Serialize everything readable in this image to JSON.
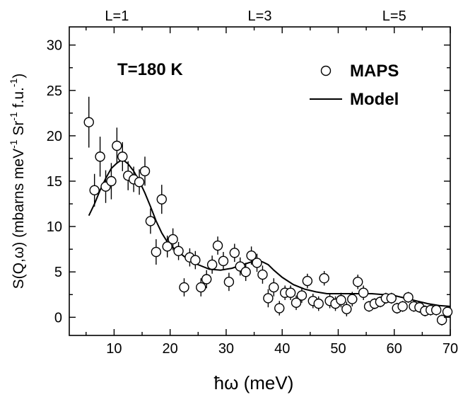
{
  "chart_data": {
    "type": "scatter",
    "annotation": "T=180 K",
    "xlabel": "ħω (meV)",
    "ylabel_main": "S(Q,ω) (mbarns meV",
    "ylabel_sup1": "-1",
    "ylabel_mid": " Sr",
    "ylabel_sup2": "-1",
    "ylabel_end": " f.u.",
    "ylabel_sup3": "-1",
    "ylabel_close": ")",
    "xlim": [
      2,
      70
    ],
    "ylim": [
      -2,
      32
    ],
    "xticks": [
      10,
      20,
      30,
      40,
      50,
      60,
      70
    ],
    "yticks": [
      0,
      5,
      10,
      15,
      20,
      25,
      30
    ],
    "top_labels": [
      {
        "text": "L=1",
        "x": 10.5
      },
      {
        "text": "L=3",
        "x": 36
      },
      {
        "text": "L=5",
        "x": 60
      }
    ],
    "legend_position": "top-right",
    "series": [
      {
        "name": "MAPS",
        "kind": "points",
        "x": [
          5.5,
          6.5,
          7.5,
          8.5,
          9.5,
          10.5,
          11.5,
          12.5,
          13.5,
          14.5,
          15.5,
          16.5,
          17.5,
          18.5,
          19.5,
          20.5,
          21.5,
          22.5,
          23.5,
          24.5,
          25.5,
          26.5,
          27.5,
          28.5,
          29.5,
          30.5,
          31.5,
          32.5,
          33.5,
          34.5,
          35.5,
          36.5,
          37.5,
          38.5,
          39.5,
          40.5,
          41.5,
          42.5,
          43.5,
          44.5,
          45.5,
          46.5,
          47.5,
          48.5,
          49.5,
          50.5,
          51.5,
          52.5,
          53.5,
          54.5,
          55.5,
          56.5,
          57.5,
          58.5,
          59.5,
          60.5,
          61.5,
          62.5,
          63.5,
          64.5,
          65.5,
          66.5,
          67.5,
          68.5,
          69.5
        ],
        "y": [
          21.5,
          14.0,
          17.7,
          14.4,
          15.0,
          18.9,
          17.7,
          15.6,
          15.2,
          14.9,
          16.1,
          10.6,
          7.2,
          13.0,
          7.8,
          8.6,
          7.3,
          3.3,
          6.6,
          6.3,
          3.3,
          4.2,
          5.8,
          7.9,
          6.2,
          3.9,
          7.1,
          5.6,
          5.0,
          6.8,
          6.0,
          4.7,
          2.1,
          3.3,
          1.0,
          2.7,
          2.7,
          1.6,
          2.4,
          4.0,
          1.8,
          1.5,
          4.3,
          1.8,
          1.5,
          1.9,
          0.9,
          2.0,
          3.9,
          2.7,
          1.2,
          1.5,
          1.7,
          2.1,
          2.1,
          1.0,
          1.2,
          2.2,
          1.2,
          1.1,
          0.7,
          0.8,
          0.8,
          -0.3,
          0.6
        ],
        "err": [
          2.8,
          1.8,
          2.2,
          1.8,
          2.0,
          2.0,
          1.6,
          1.6,
          1.4,
          1.4,
          1.6,
          1.4,
          1.4,
          1.6,
          1.2,
          1.2,
          1.0,
          1.0,
          1.0,
          1.0,
          1.0,
          1.0,
          1.0,
          1.0,
          1.0,
          1.0,
          1.0,
          1.0,
          1.0,
          1.0,
          1.0,
          1.0,
          1.0,
          1.0,
          0.8,
          0.8,
          0.8,
          0.8,
          0.8,
          0.8,
          0.8,
          0.8,
          0.8,
          0.8,
          0.8,
          0.8,
          0.8,
          0.8,
          0.8,
          0.8,
          0.6,
          0.6,
          0.6,
          0.6,
          0.6,
          0.6,
          0.6,
          0.6,
          0.6,
          0.6,
          0.6,
          0.6,
          0.6,
          0.6,
          0.6
        ]
      },
      {
        "name": "Model",
        "kind": "line",
        "x": [
          5.5,
          6.5,
          7.5,
          8.5,
          9.5,
          10.5,
          11.5,
          12.5,
          13.5,
          14.5,
          15.5,
          16.5,
          17.5,
          18.5,
          19.5,
          20.5,
          21.5,
          22.5,
          23.5,
          25,
          27,
          29,
          31,
          33,
          34.5,
          35.5,
          36.5,
          37.5,
          38.5,
          40,
          42,
          44,
          46,
          48,
          50,
          52,
          54,
          56,
          58,
          60,
          62,
          64,
          66,
          68,
          70
        ],
        "y": [
          11.2,
          12.5,
          14.0,
          15.3,
          16.4,
          17.0,
          17.4,
          16.9,
          16.1,
          15.0,
          13.7,
          12.2,
          10.6,
          9.3,
          8.3,
          7.7,
          7.2,
          6.7,
          6.3,
          5.8,
          5.3,
          5.2,
          5.4,
          5.8,
          6.1,
          6.2,
          6.1,
          5.8,
          5.2,
          4.4,
          3.6,
          3.1,
          2.8,
          2.6,
          2.6,
          2.6,
          2.6,
          2.6,
          2.5,
          2.4,
          2.1,
          1.8,
          1.5,
          1.3,
          1.2
        ]
      }
    ]
  }
}
